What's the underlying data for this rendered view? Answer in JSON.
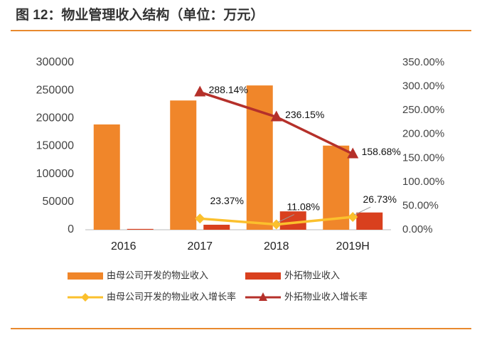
{
  "chart_data": {
    "type": "bar",
    "title": "图 12：物业管理收入结构（单位：万元）",
    "categories": [
      "2016",
      "2017",
      "2018",
      "2019H"
    ],
    "ylim": [
      0,
      300000
    ],
    "yticks": [
      0,
      50000,
      100000,
      150000,
      200000,
      250000,
      300000
    ],
    "y2lim": [
      0,
      350
    ],
    "y2ticks": [
      {
        "value": 0,
        "label": "0.00%"
      },
      {
        "value": 50,
        "label": "50.00%"
      },
      {
        "value": 100,
        "label": "100.00%"
      },
      {
        "value": 150,
        "label": "150.00%"
      },
      {
        "value": 200,
        "label": "200.00%"
      },
      {
        "value": 250,
        "label": "250.00%"
      },
      {
        "value": 300,
        "label": "300.00%"
      },
      {
        "value": 350,
        "label": "350.00%"
      }
    ],
    "series": [
      {
        "name": "由母公司开发的物业收入",
        "type": "bar",
        "color": "#f0862a",
        "values": [
          189000,
          232000,
          259000,
          151000
        ]
      },
      {
        "name": "外拓物业收入",
        "type": "bar",
        "color": "#d9401e",
        "values": [
          1500,
          9000,
          33000,
          31000
        ]
      },
      {
        "name": "由母公司开发的物业收入增长率",
        "type": "line",
        "marker": "diamond",
        "axis": "y2",
        "color": "#fbc02d",
        "values": [
          null,
          23.37,
          11.08,
          26.73
        ],
        "value_labels": [
          null,
          "23.37%",
          "11.08%",
          "26.73%"
        ]
      },
      {
        "name": "外拓物业收入增长率",
        "type": "line",
        "marker": "triangle",
        "axis": "y2",
        "color": "#b5302a",
        "values": [
          null,
          288.14,
          236.15,
          158.68
        ],
        "value_labels": [
          null,
          "288.14%",
          "236.15%",
          "158.68%"
        ]
      }
    ]
  }
}
